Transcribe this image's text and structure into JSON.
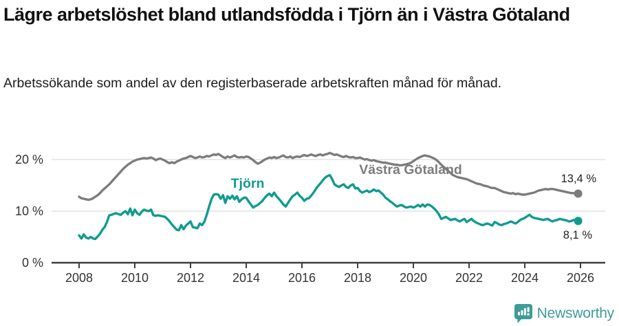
{
  "header": {
    "title": "Lägre arbetslöshet bland utlandsfödda i Tjörn än i Västra Götaland",
    "subtitle": "Arbetssökande som andel av den registerbaserade arbetskraften månad för månad."
  },
  "footer": {
    "brand": "Newsworthy"
  },
  "colors": {
    "series_gray": "#7c7c7c",
    "series_teal": "#0f9b8e",
    "logo_teal": "#3d9c96",
    "grid": "#dcdcdc",
    "axis": "#3d3d3d",
    "tick_text": "#333333",
    "value_text": "#222222"
  },
  "chart_data": {
    "type": "line",
    "title": "Lägre arbetslöshet bland utlandsfödda i Tjörn än i Västra Götaland",
    "subtitle": "Arbetssökande som andel av den registerbaserade arbetskraften månad för månad.",
    "x_start_year": 2008,
    "points_per_year": 12,
    "x_ticks": [
      2008,
      2010,
      2012,
      2014,
      2016,
      2018,
      2020,
      2022,
      2024,
      2026
    ],
    "y_ticks": [
      {
        "value": 0,
        "label": "0 %"
      },
      {
        "value": 10,
        "label": "10 %"
      },
      {
        "value": 20,
        "label": "20 %"
      }
    ],
    "ylim": [
      0,
      22.5
    ],
    "grid": true,
    "legend_position": "inline-labels",
    "series": [
      {
        "name": "Västra Götaland",
        "color": "#7c7c7c",
        "end_label": "13,4 %",
        "last_value": 13.4,
        "values": [
          12.8,
          12.5,
          12.4,
          12.3,
          12.2,
          12.3,
          12.5,
          12.8,
          13.1,
          13.5,
          14.0,
          14.4,
          14.8,
          15.2,
          15.7,
          16.2,
          16.7,
          17.2,
          17.7,
          18.2,
          18.6,
          19.0,
          19.3,
          19.6,
          19.8,
          20.0,
          20.1,
          20.2,
          20.3,
          20.2,
          20.3,
          20.4,
          20.2,
          19.9,
          20.1,
          20.2,
          20.0,
          19.8,
          19.5,
          19.3,
          19.5,
          19.3,
          19.6,
          19.8,
          20.0,
          20.2,
          20.3,
          20.5,
          20.7,
          20.5,
          20.3,
          20.4,
          20.6,
          20.4,
          20.5,
          20.7,
          20.6,
          20.8,
          21.0,
          20.9,
          21.1,
          20.8,
          20.5,
          20.3,
          20.6,
          20.4,
          20.6,
          20.8,
          20.5,
          20.4,
          20.5,
          20.4,
          20.6,
          20.5,
          20.2,
          19.9,
          19.5,
          19.2,
          19.4,
          19.7,
          20.0,
          20.2,
          20.4,
          20.3,
          20.5,
          20.3,
          20.4,
          20.6,
          20.8,
          20.5,
          20.4,
          20.6,
          20.3,
          20.5,
          20.6,
          20.5,
          20.7,
          20.9,
          20.7,
          20.8,
          21.0,
          20.8,
          20.7,
          20.9,
          21.0,
          20.8,
          21.0,
          21.1,
          21.3,
          21.1,
          20.9,
          21.0,
          20.8,
          20.6,
          20.5,
          20.7,
          20.5,
          20.4,
          20.5,
          20.3,
          20.3,
          20.4,
          20.2,
          20.0,
          20.1,
          19.9,
          19.8,
          19.9,
          19.7,
          19.6,
          19.5,
          19.4,
          19.4,
          19.3,
          19.2,
          19.1,
          19.0,
          19.0,
          18.9,
          18.9,
          19.0,
          19.1,
          19.2,
          19.4,
          19.7,
          20.0,
          20.3,
          20.5,
          20.7,
          20.8,
          20.7,
          20.6,
          20.4,
          20.2,
          19.9,
          19.5,
          19.0,
          18.6,
          18.2,
          17.8,
          17.4,
          17.0,
          16.8,
          16.6,
          16.5,
          16.4,
          16.3,
          16.2,
          16.0,
          15.8,
          15.6,
          15.4,
          15.3,
          15.2,
          15.0,
          14.9,
          14.8,
          14.6,
          14.5,
          14.5,
          14.3,
          14.1,
          13.9,
          13.7,
          13.6,
          13.5,
          13.4,
          13.5,
          13.3,
          13.4,
          13.3,
          13.2,
          13.2,
          13.3,
          13.4,
          13.5,
          13.6,
          13.8,
          14.0,
          14.1,
          14.2,
          14.3,
          14.2,
          14.3,
          14.3,
          14.2,
          14.1,
          14.0,
          13.9,
          13.8,
          13.7,
          13.6,
          13.5,
          13.5,
          13.4,
          13.4
        ]
      },
      {
        "name": "Tjörn",
        "color": "#0f9b8e",
        "end_label": "8,1 %",
        "last_value": 8.1,
        "values": [
          5.3,
          4.7,
          5.5,
          4.9,
          4.7,
          5.0,
          4.7,
          4.6,
          5.1,
          5.6,
          6.4,
          6.9,
          7.9,
          9.2,
          9.3,
          9.5,
          9.6,
          9.4,
          9.3,
          9.7,
          10.0,
          9.4,
          10.5,
          9.2,
          10.3,
          9.6,
          9.3,
          9.9,
          10.3,
          10.1,
          10.0,
          10.3,
          9.2,
          9.1,
          9.2,
          9.1,
          9.0,
          8.9,
          8.5,
          8.0,
          7.4,
          6.9,
          6.4,
          6.3,
          7.3,
          6.5,
          7.2,
          7.6,
          8.0,
          6.9,
          6.8,
          6.7,
          7.6,
          7.3,
          8.0,
          9.3,
          10.9,
          12.3,
          13.2,
          13.3,
          13.2,
          12.4,
          13.1,
          11.6,
          12.9,
          12.4,
          13.0,
          12.3,
          12.9,
          11.8,
          12.3,
          12.6,
          12.6,
          11.9,
          11.3,
          10.7,
          11.0,
          11.2,
          11.6,
          12.0,
          12.6,
          13.1,
          13.4,
          12.9,
          13.6,
          12.9,
          12.4,
          11.9,
          11.3,
          10.9,
          11.6,
          12.3,
          12.9,
          13.2,
          13.6,
          13.0,
          12.6,
          12.0,
          12.4,
          12.5,
          13.0,
          13.6,
          14.3,
          14.9,
          15.4,
          16.0,
          16.5,
          16.8,
          17.0,
          16.2,
          15.2,
          14.9,
          14.7,
          15.0,
          15.2,
          14.7,
          14.5,
          15.0,
          15.2,
          14.4,
          14.5,
          13.9,
          13.6,
          13.8,
          14.0,
          13.7,
          13.9,
          14.2,
          13.9,
          14.0,
          13.6,
          13.2,
          12.6,
          12.3,
          11.9,
          11.6,
          11.2,
          10.9,
          11.1,
          11.2,
          10.9,
          10.7,
          10.8,
          10.9,
          10.7,
          10.9,
          11.2,
          10.9,
          11.3,
          10.9,
          11.3,
          11.2,
          10.9,
          10.5,
          10.0,
          9.4,
          8.5,
          8.7,
          8.9,
          8.6,
          8.3,
          8.4,
          8.5,
          8.2,
          8.0,
          8.3,
          8.5,
          7.9,
          8.2,
          8.5,
          8.1,
          7.8,
          7.6,
          7.4,
          7.3,
          7.5,
          7.6,
          7.4,
          7.2,
          7.9,
          7.7,
          7.4,
          7.3,
          7.5,
          7.6,
          7.8,
          8.0,
          7.8,
          7.6,
          7.9,
          8.3,
          8.5,
          8.7,
          9.0,
          9.3,
          8.9,
          8.7,
          8.6,
          8.5,
          8.4,
          8.3,
          8.4,
          8.5,
          8.2,
          8.0,
          8.2,
          8.3,
          8.5,
          8.4,
          8.3,
          8.2,
          8.0,
          8.1,
          8.3,
          8.2,
          8.1
        ]
      }
    ]
  }
}
